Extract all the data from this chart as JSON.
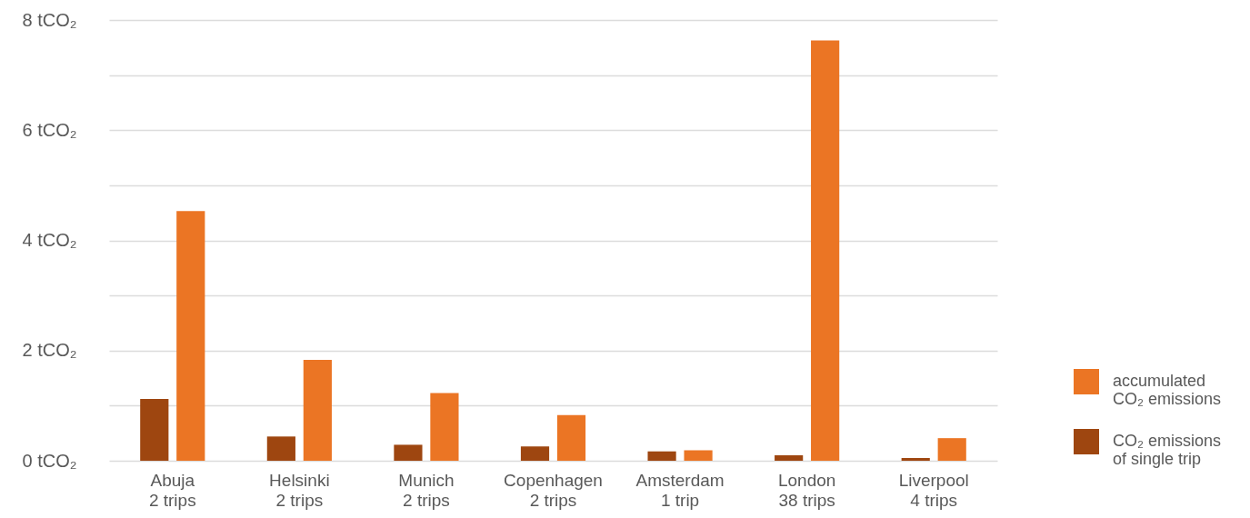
{
  "chart_data": {
    "type": "bar",
    "categories": [
      "Abuja\n2 trips",
      "Helsinki\n2 trips",
      "Munich\n2 trips",
      "Copenhagen\n2 trips",
      "Amsterdam\n1 trip",
      "London\n38 trips",
      "Liverpool\n4 trips"
    ],
    "series": [
      {
        "name": "CO₂ emissions of single trip",
        "color": "#9e4610",
        "values": [
          1.12,
          0.44,
          0.29,
          0.26,
          0.17,
          0.1,
          0.05
        ]
      },
      {
        "name": "accumulated CO₂ emissions",
        "color": "#eb7524",
        "values": [
          4.53,
          1.83,
          1.23,
          0.83,
          0.19,
          7.63,
          0.41
        ]
      }
    ],
    "ylim": [
      0,
      8
    ],
    "yticks": [
      {
        "value": 0,
        "label": "0 tCO₂"
      },
      {
        "value": 1,
        "label": null
      },
      {
        "value": 2,
        "label": "2 tCO₂"
      },
      {
        "value": 3,
        "label": null
      },
      {
        "value": 4,
        "label": "4 tCO₂"
      },
      {
        "value": 5,
        "label": null
      },
      {
        "value": 6,
        "label": "6 tCO₂"
      },
      {
        "value": 7,
        "label": null
      },
      {
        "value": 8,
        "label": "8 tCO₂"
      }
    ],
    "grid": "y",
    "legend": "bottom right"
  }
}
